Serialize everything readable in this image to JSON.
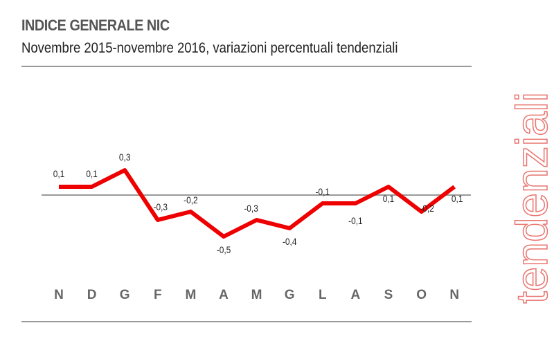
{
  "chart_data": {
    "type": "line",
    "title": "INDICE GENERALE NIC",
    "subtitle": "Novembre 2015-novembre 2016, variazioni percentuali tendenziali",
    "side_label": "tendenziali",
    "categories": [
      "N",
      "D",
      "G",
      "F",
      "M",
      "A",
      "M",
      "G",
      "L",
      "A",
      "S",
      "O",
      "N"
    ],
    "values": [
      0.1,
      0.1,
      0.3,
      -0.3,
      -0.2,
      -0.5,
      -0.3,
      -0.4,
      -0.1,
      -0.1,
      0.1,
      -0.2,
      0.1
    ],
    "value_labels": [
      "0,1",
      "0,1",
      "0,3",
      "-0,3",
      "-0,2",
      "-0,5",
      "-0,3",
      "-0,4",
      "-0,1",
      "-0,1",
      "0,1",
      "-0,2",
      "0,1"
    ],
    "xlabel": "",
    "ylabel": "",
    "grid": false,
    "colors": {
      "line": "#ee0000",
      "zero_line": "#999999",
      "axis_text": "#666666"
    }
  }
}
